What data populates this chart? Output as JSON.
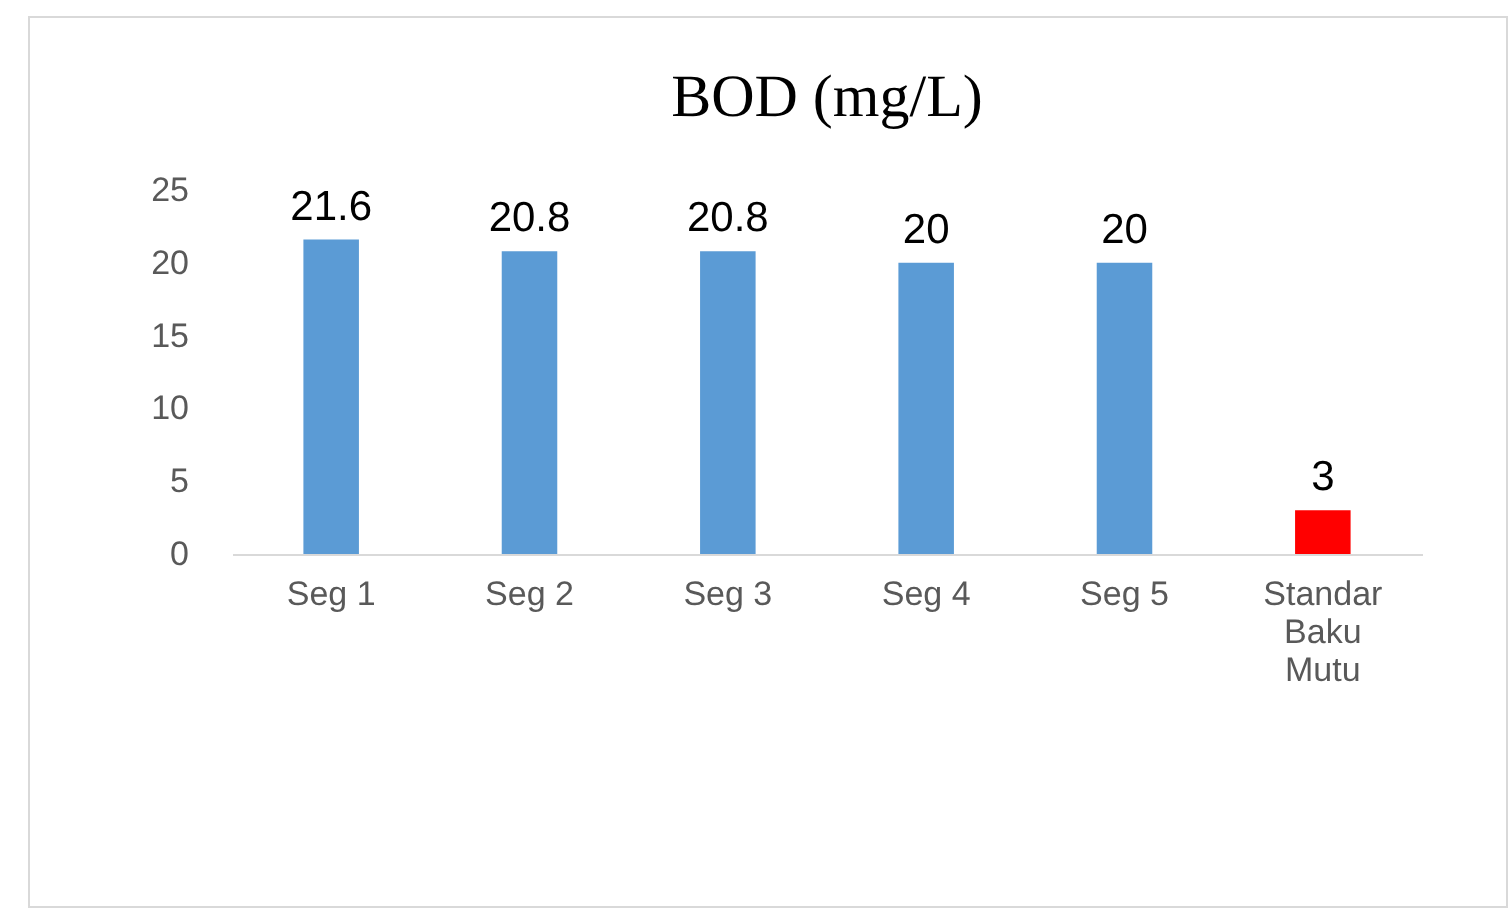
{
  "chart_data": {
    "type": "bar",
    "title": "BOD (mg/L)",
    "categories": [
      "Seg 1",
      "Seg 2",
      "Seg 3",
      "Seg 4",
      "Seg 5",
      "Standar Baku Mutu"
    ],
    "values": [
      21.6,
      20.8,
      20.8,
      20,
      20,
      3
    ],
    "colors": [
      "#5b9bd5",
      "#5b9bd5",
      "#5b9bd5",
      "#5b9bd5",
      "#5b9bd5",
      "#ff0000"
    ],
    "ylim": [
      0,
      25
    ],
    "yticks": [
      0,
      5,
      10,
      15,
      20,
      25
    ],
    "data_labels": true
  }
}
